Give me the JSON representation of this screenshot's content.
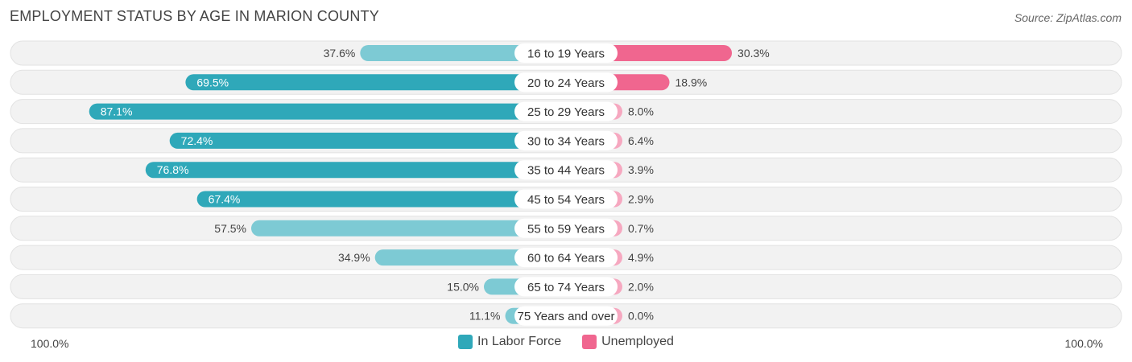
{
  "title": "EMPLOYMENT STATUS BY AGE IN MARION COUNTY",
  "source": "Source: ZipAtlas.com",
  "colors": {
    "labor_force": "#2fa8b9",
    "labor_force_light": "#7dcad4",
    "unemployed": "#f0668f",
    "unemployed_light": "#f6a8c0",
    "row_background": "#f2f2f2"
  },
  "chart_data": {
    "type": "bar",
    "orientation": "horizontal-diverging",
    "categories": [
      "16 to 19 Years",
      "20 to 24 Years",
      "25 to 29 Years",
      "30 to 34 Years",
      "35 to 44 Years",
      "45 to 54 Years",
      "55 to 59 Years",
      "60 to 64 Years",
      "65 to 74 Years",
      "75 Years and over"
    ],
    "series": [
      {
        "name": "In Labor Force",
        "values": [
          37.6,
          69.5,
          87.1,
          72.4,
          76.8,
          67.4,
          57.5,
          34.9,
          15.0,
          11.1
        ],
        "labels": [
          "37.6%",
          "69.5%",
          "87.1%",
          "72.4%",
          "76.8%",
          "67.4%",
          "57.5%",
          "34.9%",
          "15.0%",
          "11.1%"
        ]
      },
      {
        "name": "Unemployed",
        "values": [
          30.3,
          18.9,
          8.0,
          6.4,
          3.9,
          2.9,
          0.7,
          4.9,
          2.0,
          0.0
        ],
        "labels": [
          "30.3%",
          "18.9%",
          "8.0%",
          "6.4%",
          "3.9%",
          "2.9%",
          "0.7%",
          "4.9%",
          "2.0%",
          "0.0%"
        ]
      }
    ],
    "xlim": [
      -100,
      100
    ],
    "axis_left_label": "100.0%",
    "axis_right_label": "100.0%",
    "legend_position": "bottom-center"
  }
}
